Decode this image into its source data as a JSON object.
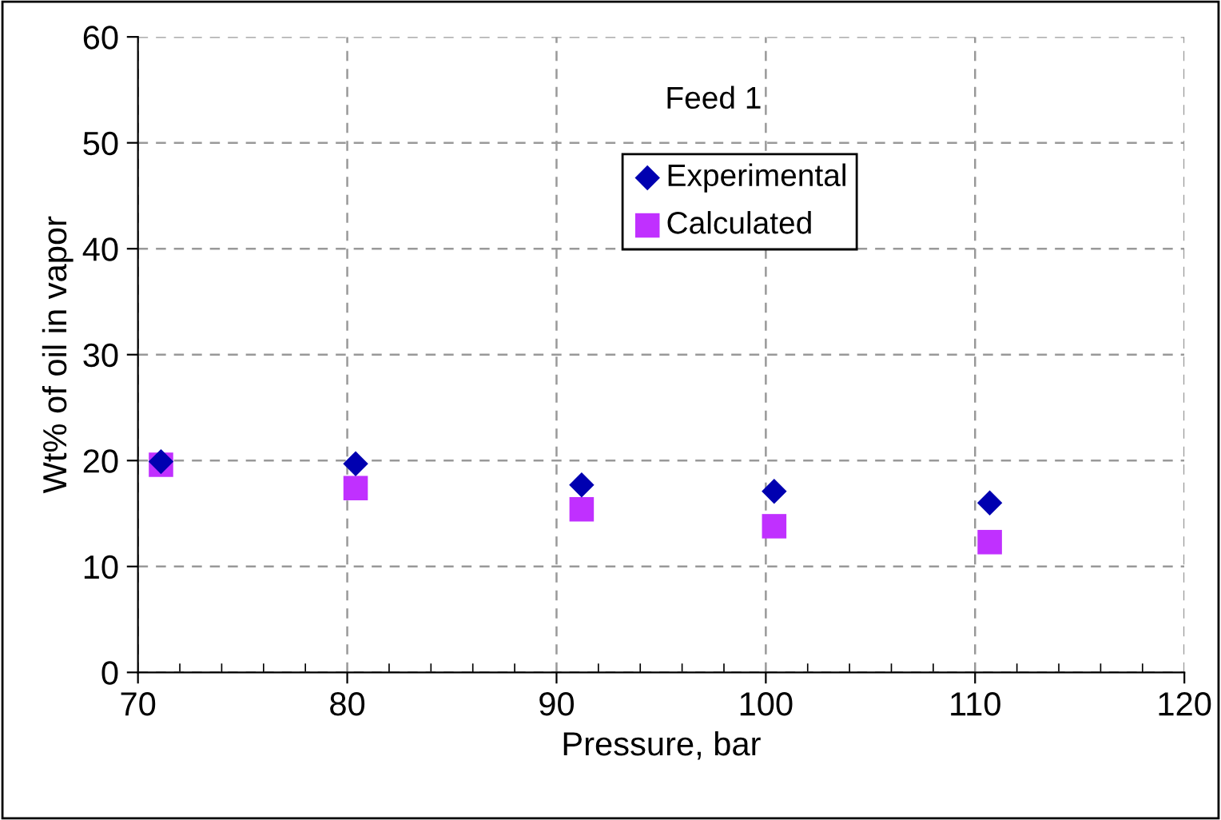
{
  "chart_data": {
    "type": "scatter",
    "xlabel": "Pressure, bar",
    "ylabel": "Wt% of oil in vapor",
    "annotations": [
      "Feed 1"
    ],
    "series": [
      {
        "name": "Experimental",
        "color": "#0000b0",
        "marker": "diamond",
        "x": [
          71.1,
          80.4,
          91.2,
          100.4,
          110.7
        ],
        "values": [
          19.9,
          19.7,
          17.7,
          17.1,
          16.0
        ]
      },
      {
        "name": "Calculated",
        "color": "#c030ff",
        "marker": "square",
        "x": [
          71.1,
          80.4,
          91.2,
          100.4,
          110.7
        ],
        "values": [
          19.6,
          17.4,
          15.4,
          13.8,
          12.3
        ]
      }
    ],
    "xlim": [
      70,
      120
    ],
    "xticks": [
      70,
      80,
      90,
      100,
      110,
      120
    ],
    "ylim": [
      0,
      60
    ],
    "yticks": [
      0,
      10,
      20,
      30,
      40,
      50,
      60
    ],
    "grid": true,
    "legend": "top"
  }
}
